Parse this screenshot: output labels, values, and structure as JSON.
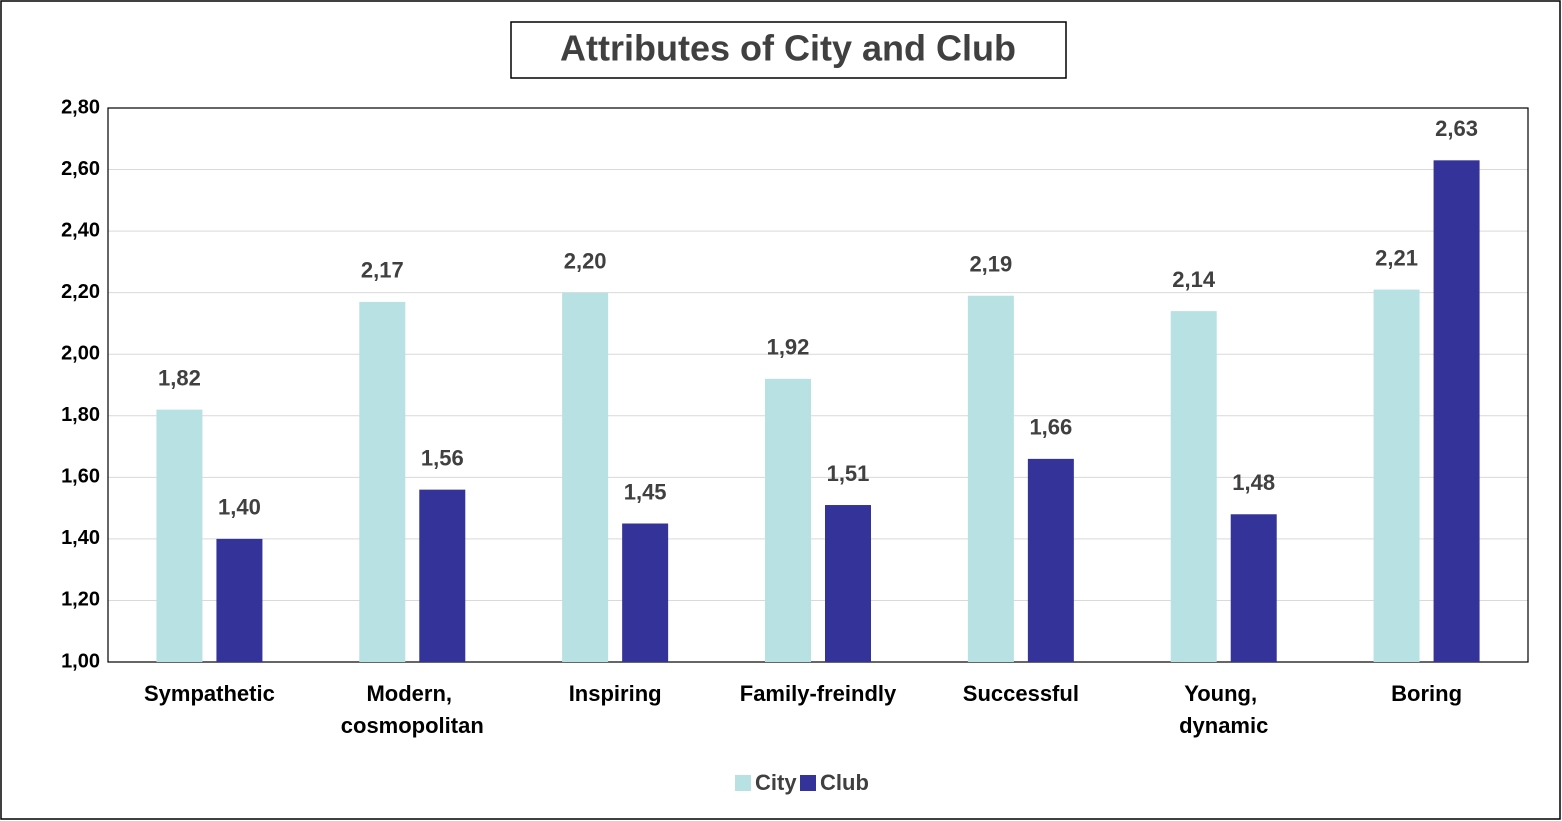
{
  "chart_data": {
    "type": "bar",
    "title": "Attributes of City and Club",
    "categories": [
      "Sympathetic",
      "Modern, cosmopolitan",
      "Inspiring",
      "Family-freindly",
      "Successful",
      "Young, dynamic",
      "Boring"
    ],
    "series": [
      {
        "name": "City",
        "color": "#b7e1e3",
        "values": [
          1.82,
          2.17,
          2.2,
          1.92,
          2.19,
          2.14,
          2.21
        ],
        "value_labels": [
          "1,82",
          "2,17",
          "2,20",
          "1,92",
          "2,19",
          "2,14",
          "2,21"
        ]
      },
      {
        "name": "Club",
        "color": "#333399",
        "values": [
          1.4,
          1.56,
          1.45,
          1.51,
          1.66,
          1.48,
          2.63
        ],
        "value_labels": [
          "1,40",
          "1,56",
          "1,45",
          "1,51",
          "1,66",
          "1,48",
          "2,63"
        ]
      }
    ],
    "ylim": [
      1,
      2.8
    ],
    "yticks": [
      {
        "value": 1,
        "label": "1,00"
      },
      {
        "value": 1.2,
        "label": "1,20"
      },
      {
        "value": 1.4,
        "label": "1,40"
      },
      {
        "value": 1.6,
        "label": "1,60"
      },
      {
        "value": 1.8,
        "label": "1,80"
      },
      {
        "value": 2,
        "label": "2,00"
      },
      {
        "value": 2.2,
        "label": "2,20"
      },
      {
        "value": 2.4,
        "label": "2,40"
      },
      {
        "value": 2.6,
        "label": "2,60"
      },
      {
        "value": 2.8,
        "label": "2,80"
      }
    ],
    "grid": true,
    "legend": "bottom"
  }
}
